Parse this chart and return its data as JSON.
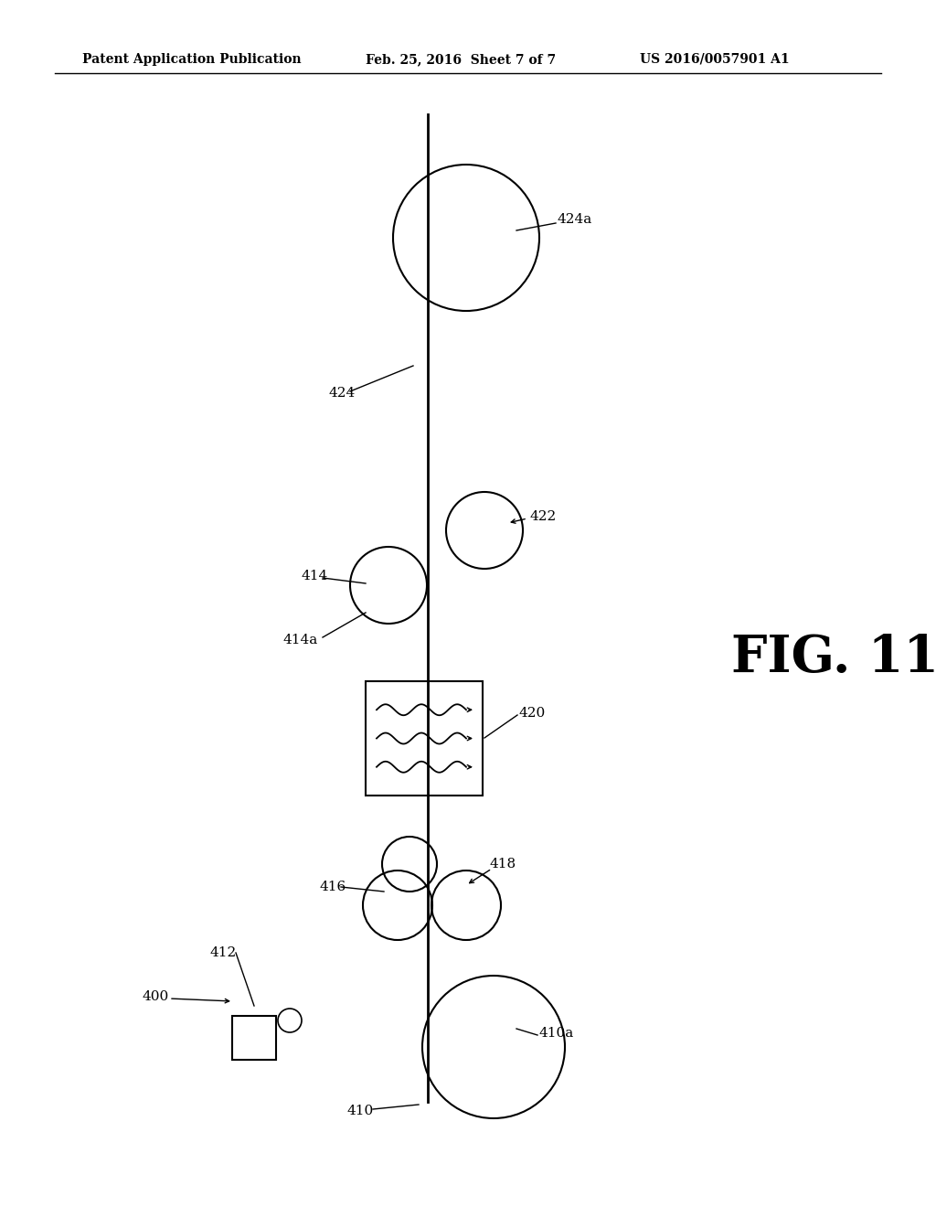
{
  "bg_color": "#ffffff",
  "line_color": "#000000",
  "fig_label": "FIG. 11",
  "header_left": "Patent Application Publication",
  "header_mid": "Feb. 25, 2016  Sheet 7 of 7",
  "header_right": "US 2016/0057901 A1",
  "label_fontsize": 11
}
